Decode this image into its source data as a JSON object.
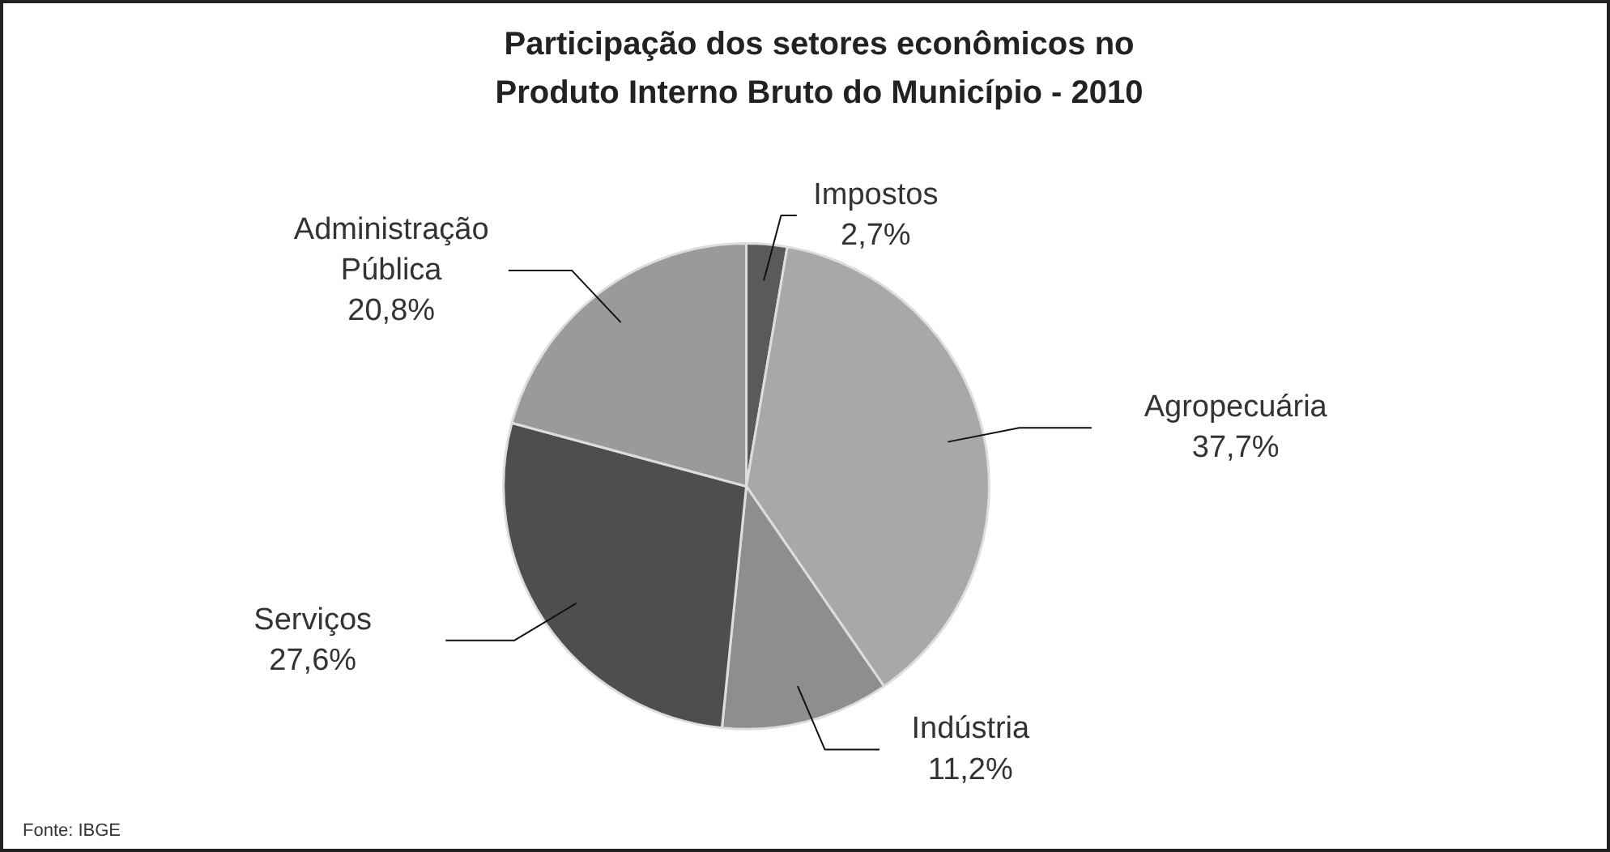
{
  "chart_data": {
    "type": "pie",
    "title": "Participação dos setores econômicos no Produto Interno Bruto do Município - 2010",
    "categories": [
      "Impostos",
      "Agropecuária",
      "Indústria",
      "Serviços",
      "Administração Pública"
    ],
    "values": [
      2.7,
      37.7,
      11.2,
      27.6,
      20.8
    ],
    "value_labels": [
      "2,7%",
      "37,7%",
      "11,2%",
      "27,6%",
      "20,8%"
    ],
    "colors": [
      "#5a5a5a",
      "#a8a8a8",
      "#8e8e8e",
      "#4e4e4e",
      "#9a9a9a"
    ],
    "legend": false,
    "annotations": [
      "Fonte: IBGE"
    ]
  }
}
